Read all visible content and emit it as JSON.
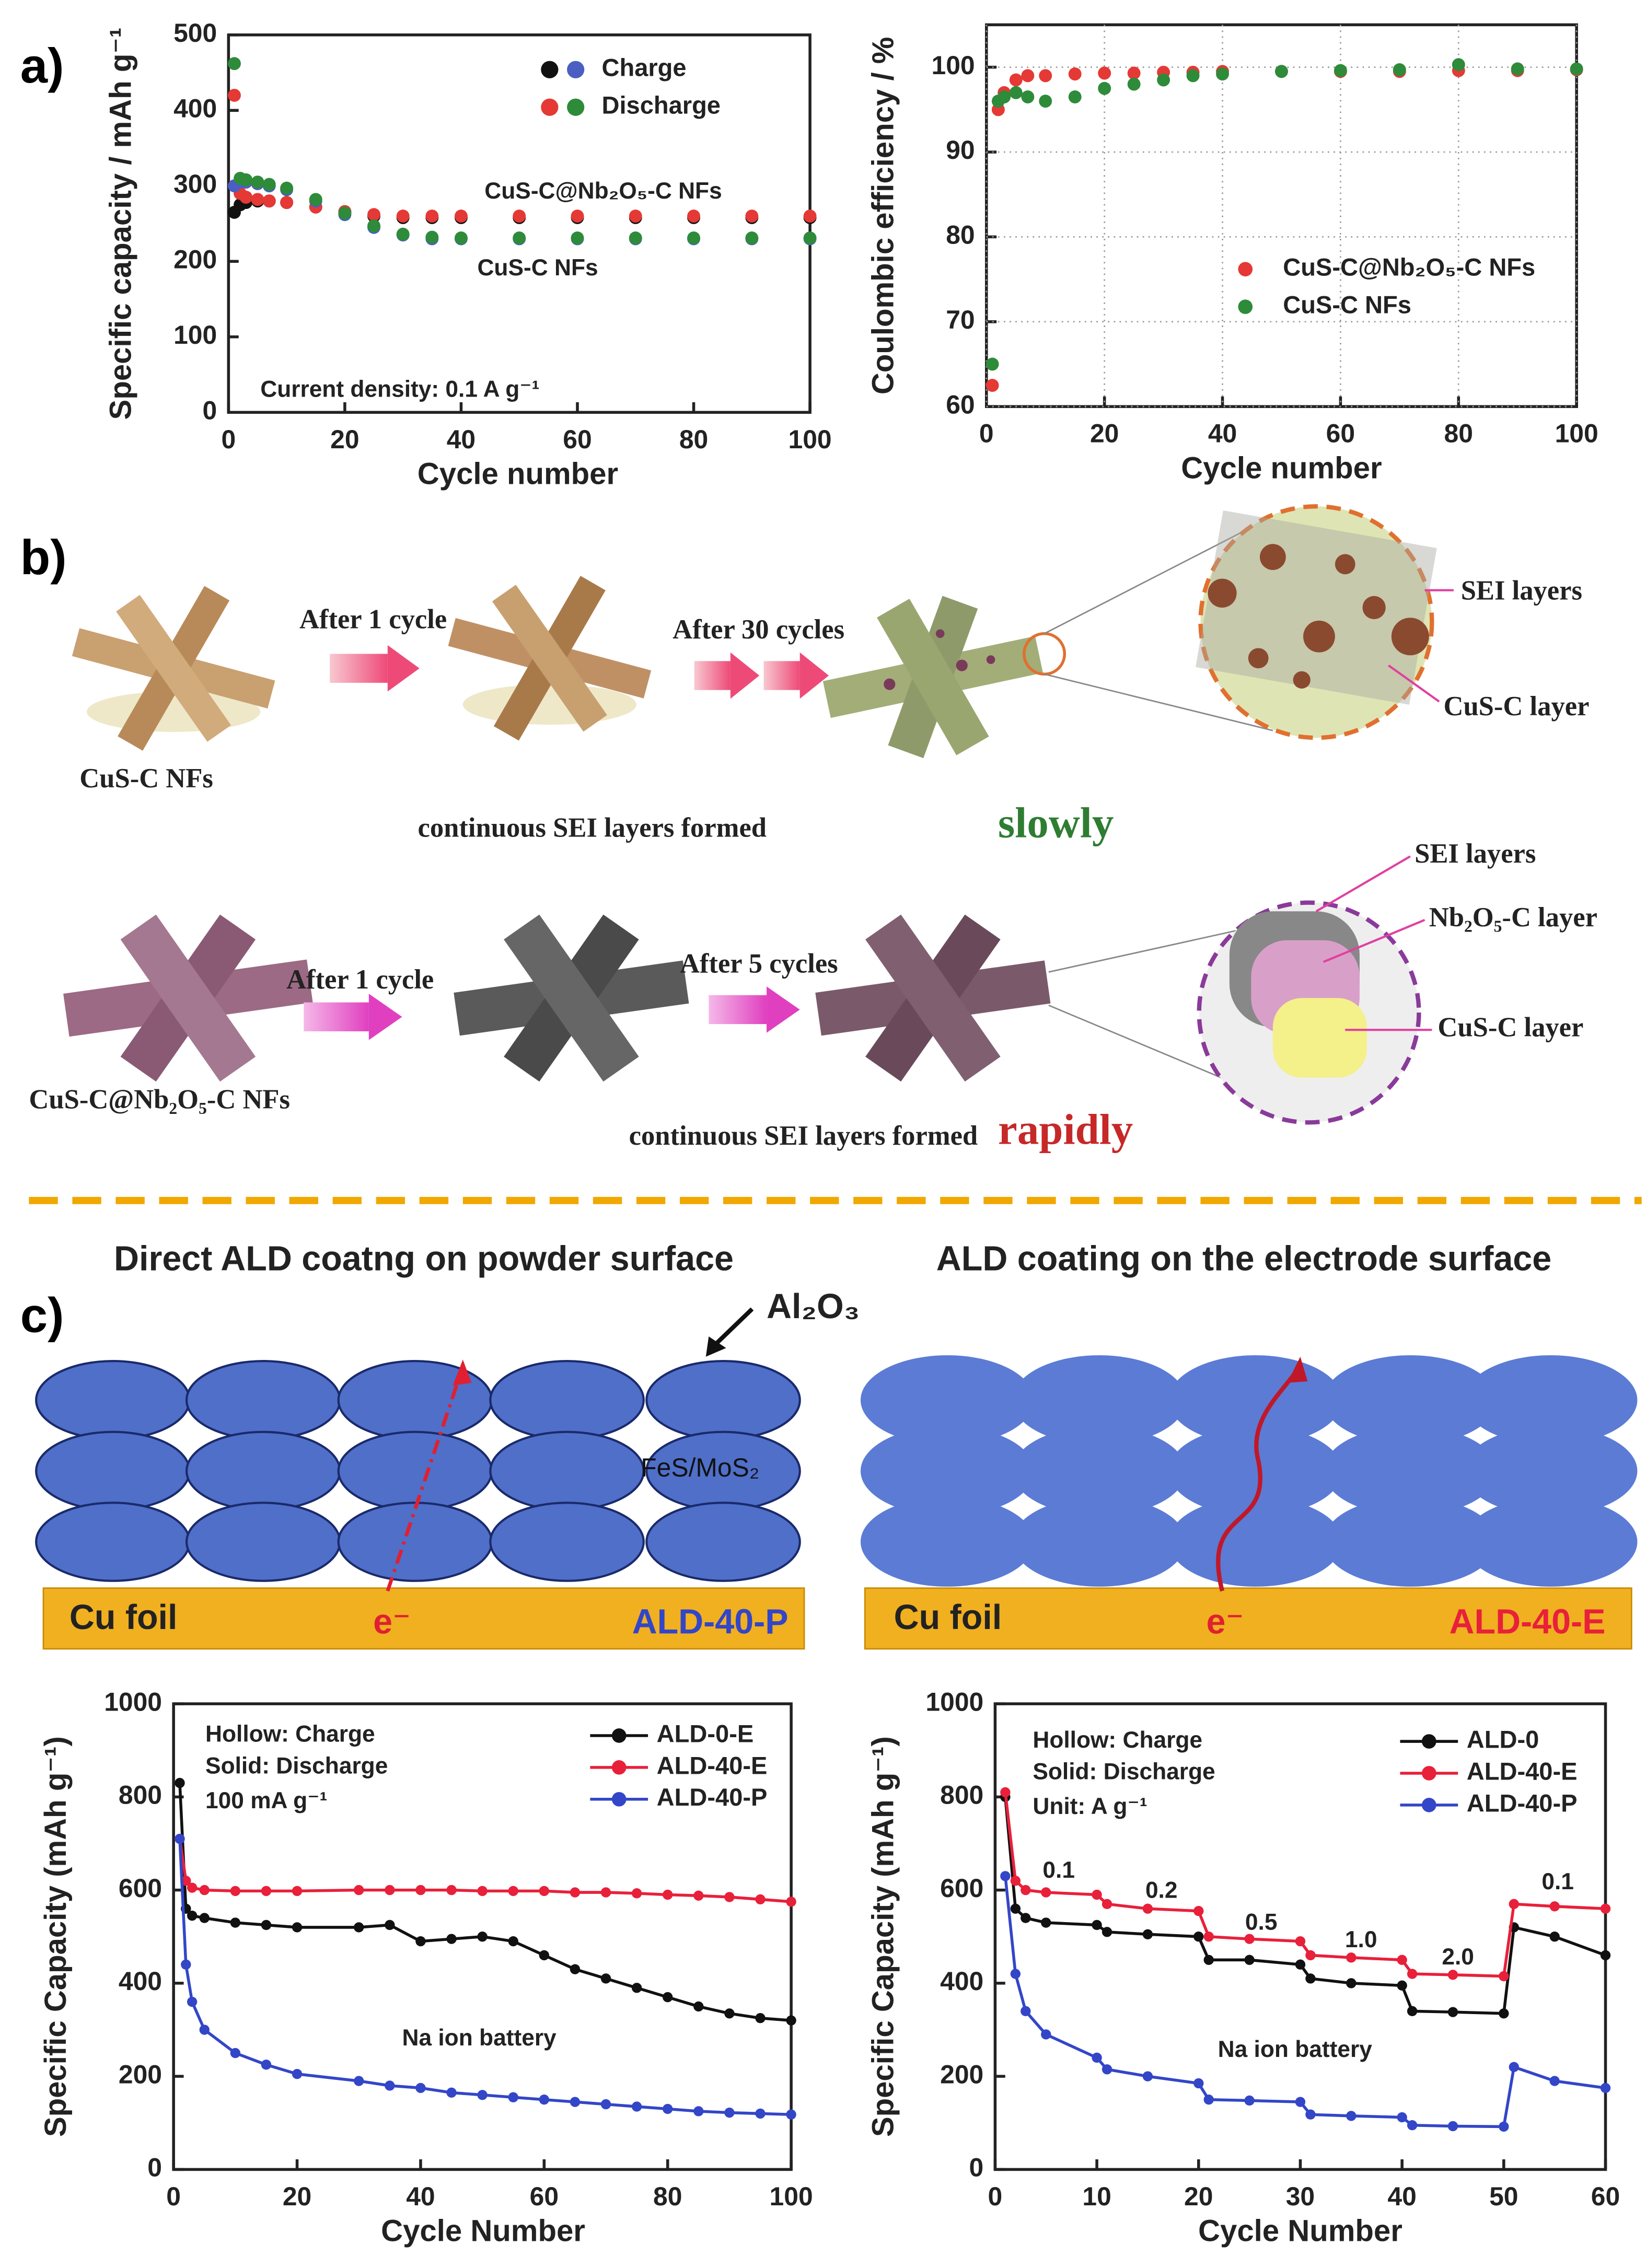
{
  "panel_labels": [
    "a)",
    "b)",
    "c)"
  ],
  "chart_data": [
    {
      "type": "scatter",
      "x_label": "Cycle number",
      "y_label": "Specific capacity / mAh g⁻¹",
      "xlim": [
        0,
        100
      ],
      "xticks": [
        0,
        20,
        40,
        60,
        80,
        100
      ],
      "ylim": [
        0,
        500
      ],
      "yticks": [
        0,
        100,
        200,
        300,
        400,
        500
      ],
      "x": [
        1,
        2,
        3,
        5,
        7,
        10,
        15,
        20,
        25,
        30,
        35,
        40,
        50,
        60,
        70,
        80,
        90,
        100
      ],
      "series": [
        {
          "color": "#111111",
          "values": [
            265,
            275,
            278,
            280,
            280,
            278,
            272,
            265,
            260,
            258,
            258,
            258,
            258,
            258,
            258,
            258,
            258,
            258
          ]
        },
        {
          "color": "#e53935",
          "values": [
            420,
            290,
            285,
            282,
            280,
            278,
            272,
            266,
            262,
            260,
            260,
            260,
            260,
            260,
            260,
            260,
            260,
            260
          ]
        },
        {
          "color": "#4a5fc1",
          "values": [
            300,
            305,
            305,
            303,
            300,
            295,
            280,
            262,
            245,
            235,
            230,
            230,
            230,
            230,
            230,
            230,
            230,
            230
          ]
        },
        {
          "color": "#2e8b3a",
          "values": [
            462,
            310,
            308,
            305,
            302,
            297,
            282,
            264,
            247,
            236,
            232,
            231,
            231,
            231,
            231,
            231,
            231,
            231
          ]
        }
      ],
      "legend": [
        {
          "label": "Charge",
          "colors": [
            "#111111",
            "#4a5fc1"
          ]
        },
        {
          "label": "Discharge",
          "colors": [
            "#e53935",
            "#2e8b3a"
          ]
        }
      ],
      "annotations": [
        "CuS-C@Nb₂O₅-C NFs",
        "CuS-C NFs",
        "Current density: 0.1 A g⁻¹"
      ]
    },
    {
      "type": "scatter",
      "x_label": "Cycle number",
      "y_label": "Coulombic efficiency / %",
      "grid": true,
      "xlim": [
        0,
        100
      ],
      "xticks": [
        0,
        20,
        40,
        60,
        80,
        100
      ],
      "ylim": [
        60,
        105
      ],
      "yticks": [
        60,
        70,
        80,
        90,
        100
      ],
      "x": [
        1,
        2,
        3,
        5,
        7,
        10,
        15,
        20,
        25,
        30,
        35,
        40,
        50,
        60,
        70,
        80,
        90,
        100
      ],
      "series": [
        {
          "name": "CuS-C@Nb₂O₅-C NFs",
          "color": "#e53935",
          "values": [
            62.5,
            95,
            97,
            98.5,
            99,
            99,
            99.2,
            99.3,
            99.3,
            99.4,
            99.4,
            99.5,
            99.5,
            99.5,
            99.5,
            99.6,
            99.6,
            99.7
          ]
        },
        {
          "name": "CuS-C NFs",
          "color": "#2e8b3a",
          "values": [
            65,
            96,
            96.5,
            97,
            96.5,
            96,
            96.5,
            97.5,
            98,
            98.5,
            99,
            99.2,
            99.5,
            99.6,
            99.7,
            100.3,
            99.8,
            99.8
          ]
        }
      ]
    },
    {
      "type": "line",
      "x_label": "Cycle Number",
      "y_label": "Specific Capacity (mAh g⁻¹)",
      "xlim": [
        0,
        100
      ],
      "xticks": [
        0,
        20,
        40,
        60,
        80,
        100
      ],
      "ylim": [
        0,
        1000
      ],
      "yticks": [
        0,
        200,
        400,
        600,
        800,
        1000
      ],
      "x": [
        1,
        2,
        3,
        5,
        10,
        15,
        20,
        30,
        35,
        40,
        45,
        50,
        55,
        60,
        65,
        70,
        75,
        80,
        85,
        90,
        95,
        100
      ],
      "series": [
        {
          "name": "ALD-0-E",
          "color": "#111111",
          "values": [
            830,
            560,
            545,
            540,
            530,
            525,
            520,
            520,
            525,
            490,
            495,
            500,
            490,
            460,
            430,
            410,
            390,
            370,
            350,
            335,
            325,
            320
          ]
        },
        {
          "name": "ALD-40-E",
          "color": "#e8203a",
          "values": [
            710,
            620,
            605,
            600,
            598,
            598,
            598,
            600,
            600,
            600,
            600,
            598,
            598,
            598,
            595,
            595,
            593,
            590,
            588,
            585,
            580,
            575
          ]
        },
        {
          "name": "ALD-40-P",
          "color": "#3346c8",
          "values": [
            710,
            440,
            360,
            300,
            250,
            225,
            205,
            190,
            180,
            175,
            165,
            160,
            155,
            150,
            145,
            140,
            135,
            130,
            125,
            122,
            120,
            118
          ]
        }
      ],
      "annotations": [
        "Hollow: Charge",
        "Solid: Discharge",
        "100 mA g⁻¹",
        "Na ion battery"
      ]
    },
    {
      "type": "line",
      "x_label": "Cycle Number",
      "y_label": "Specific Capacity (mAh g⁻¹)",
      "xlim": [
        0,
        60
      ],
      "xticks": [
        0,
        10,
        20,
        30,
        40,
        50,
        60
      ],
      "ylim": [
        0,
        1000
      ],
      "yticks": [
        0,
        200,
        400,
        600,
        800,
        1000
      ],
      "x": [
        1,
        2,
        3,
        5,
        10,
        11,
        15,
        20,
        21,
        25,
        30,
        31,
        35,
        40,
        41,
        45,
        50,
        51,
        55,
        60
      ],
      "series": [
        {
          "name": "ALD-0",
          "color": "#111111",
          "values": [
            800,
            560,
            540,
            530,
            525,
            510,
            505,
            500,
            450,
            450,
            440,
            410,
            400,
            395,
            340,
            338,
            335,
            520,
            500,
            460
          ]
        },
        {
          "name": "ALD-40-E",
          "color": "#e8203a",
          "values": [
            810,
            620,
            600,
            595,
            590,
            570,
            560,
            555,
            500,
            495,
            490,
            460,
            455,
            450,
            420,
            418,
            415,
            570,
            565,
            560
          ]
        },
        {
          "name": "ALD-40-P",
          "color": "#3346c8",
          "values": [
            630,
            420,
            340,
            290,
            240,
            215,
            200,
            185,
            150,
            148,
            145,
            118,
            115,
            112,
            95,
            93,
            92,
            220,
            190,
            175
          ]
        }
      ],
      "annotations": [
        "Hollow: Charge",
        "Solid: Discharge",
        "Unit: A g⁻¹",
        "Na ion battery"
      ],
      "rate_labels": [
        "0.1",
        "0.2",
        "0.5",
        "1.0",
        "2.0",
        "0.1"
      ],
      "rate_label_color": "#e8203a"
    }
  ],
  "panel_b": {
    "top": {
      "step1": "After 1 cycle",
      "step2": "After 30 cycles",
      "sample": "CuS-C NFs",
      "callouts": [
        "SEI layers",
        "CuS-C layer"
      ],
      "caption": "continuous SEI layers formed",
      "speed": "slowly"
    },
    "bottom": {
      "step1": "After 1 cycle",
      "step2": "After 5 cycles",
      "sample": "CuS-C@Nb₂O₅-C NFs",
      "callouts": [
        "SEI layers",
        "Nb₂O₅-C layer",
        "CuS-C layer"
      ],
      "caption": "continuous SEI layers formed",
      "speed": "rapidly"
    }
  },
  "panel_c": {
    "left": {
      "title": "Direct ALD coatng on powder surface",
      "coating": "Al₂O₃",
      "particle": "FeS/MoS₂",
      "foil": "Cu foil",
      "electron": "e⁻",
      "sample": "ALD-40-P"
    },
    "right": {
      "title": "ALD coating on the electrode surface",
      "foil": "Cu foil",
      "electron": "e⁻",
      "sample": "ALD-40-E"
    }
  }
}
